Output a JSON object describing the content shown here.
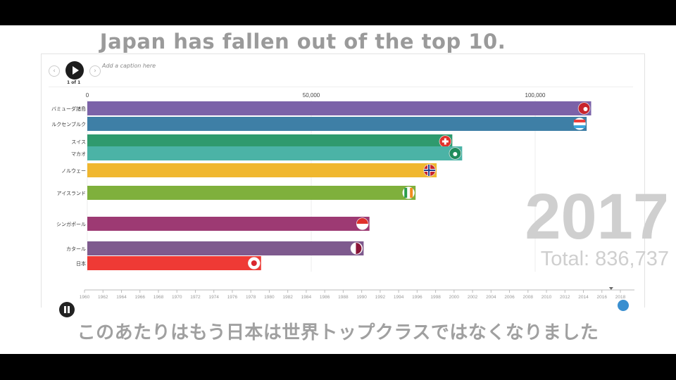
{
  "headline": "Japan has fallen out of the top 10.",
  "subtitle": "このあたりはもう日本は世界トップクラスではなくなりました",
  "player": {
    "caption_placeholder": "Add a caption here",
    "page_indicator": "1 of 1"
  },
  "overlay": {
    "year": "2017",
    "total": "Total: 836,737"
  },
  "chart_data": {
    "type": "bar",
    "orientation": "horizontal",
    "categories": [
      "バミューダ諸島",
      "ルクセンブルク",
      "スイス",
      "マカオ",
      "ノルウェー",
      "アイスランド",
      "シンガポール",
      "カタール",
      "日本"
    ],
    "values": [
      112500,
      111500,
      81500,
      83700,
      78000,
      73300,
      63000,
      61700,
      38800
    ],
    "colors": [
      "#7b62a8",
      "#3e7fa6",
      "#2f9a6e",
      "#4bb3a6",
      "#f0b72f",
      "#7fb03c",
      "#9d3a73",
      "#7e5a8e",
      "#ef3a35"
    ],
    "flags": [
      "bermuda-flag",
      "luxembourg-flag",
      "switzerland-flag",
      "macau-flag",
      "norway-flag",
      "iceland-flag",
      "singapore-flag",
      "qatar-flag",
      "japan-flag"
    ],
    "x_ticks": [
      "0",
      "50,000",
      "100,000"
    ],
    "x_tick_values": [
      0,
      50000,
      100000
    ],
    "xlim": [
      0,
      130000
    ],
    "grid": true,
    "timeline_years": [
      "1960",
      "1962",
      "1964",
      "1966",
      "1968",
      "1970",
      "1972",
      "1974",
      "1976",
      "1978",
      "1980",
      "1982",
      "1984",
      "1986",
      "1988",
      "1990",
      "1992",
      "1994",
      "1996",
      "1998",
      "2000",
      "2002",
      "2004",
      "2006",
      "2008",
      "2010",
      "2012",
      "2014",
      "2016",
      "2018"
    ],
    "current_year": 2017
  }
}
